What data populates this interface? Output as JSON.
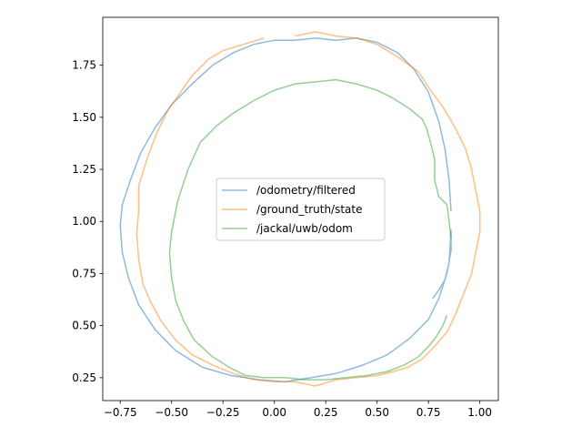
{
  "chart_data": {
    "type": "line",
    "title": "",
    "xlabel": "",
    "ylabel": "",
    "xlim": [
      -0.835,
      1.09
    ],
    "ylim": [
      0.14,
      1.98
    ],
    "xticks": [
      -0.75,
      -0.5,
      -0.25,
      0.0,
      0.25,
      0.5,
      0.75,
      1.0
    ],
    "xtick_labels": [
      "−0.75",
      "−0.50",
      "−0.25",
      "0.00",
      "0.25",
      "0.50",
      "0.75",
      "1.00"
    ],
    "yticks": [
      0.25,
      0.5,
      0.75,
      1.0,
      1.25,
      1.5,
      1.75
    ],
    "ytick_labels": [
      "0.25",
      "0.50",
      "0.75",
      "1.00",
      "1.25",
      "1.50",
      "1.75"
    ],
    "grid": false,
    "legend_position": "center",
    "series": [
      {
        "name": "/odometry/filtered",
        "color": "#1f77b4",
        "x": [
          0.86,
          0.85,
          0.83,
          0.8,
          0.75,
          0.68,
          0.6,
          0.5,
          0.4,
          0.3,
          0.2,
          0.1,
          0.0,
          -0.1,
          -0.2,
          -0.3,
          -0.4,
          -0.5,
          -0.58,
          -0.65,
          -0.7,
          -0.74,
          -0.75,
          -0.74,
          -0.71,
          -0.66,
          -0.58,
          -0.48,
          -0.35,
          -0.21,
          -0.07,
          0.05,
          0.18,
          0.3,
          0.43,
          0.55,
          0.66,
          0.75,
          0.8,
          0.84,
          0.86,
          0.86,
          0.85,
          0.83,
          0.8,
          0.77
        ],
        "y": [
          1.05,
          1.2,
          1.35,
          1.48,
          1.62,
          1.73,
          1.81,
          1.86,
          1.88,
          1.87,
          1.88,
          1.87,
          1.87,
          1.85,
          1.81,
          1.75,
          1.66,
          1.56,
          1.45,
          1.33,
          1.2,
          1.08,
          0.98,
          0.85,
          0.73,
          0.6,
          0.48,
          0.38,
          0.3,
          0.26,
          0.24,
          0.23,
          0.25,
          0.27,
          0.31,
          0.36,
          0.44,
          0.53,
          0.63,
          0.75,
          0.86,
          0.96,
          0.8,
          0.72,
          0.67,
          0.63
        ]
      },
      {
        "name": "/ground_truth/state",
        "color": "#ff7f0e",
        "x": [
          0.1,
          0.2,
          0.3,
          0.4,
          0.5,
          0.6,
          0.7,
          0.76,
          0.82,
          0.88,
          0.93,
          0.96,
          0.98,
          1.0,
          1.0,
          0.98,
          0.96,
          0.92,
          0.88,
          0.84,
          0.78,
          0.72,
          0.65,
          0.58,
          0.5,
          0.4,
          0.3,
          0.2,
          0.1,
          0.0,
          -0.1,
          -0.2,
          -0.3,
          -0.4,
          -0.48,
          -0.55,
          -0.6,
          -0.64,
          -0.66,
          -0.67,
          -0.66,
          -0.66,
          -0.62,
          -0.57,
          -0.52,
          -0.45,
          -0.4,
          -0.32,
          -0.25,
          -0.15,
          -0.05
        ],
        "y": [
          1.89,
          1.91,
          1.89,
          1.88,
          1.85,
          1.79,
          1.72,
          1.63,
          1.55,
          1.45,
          1.35,
          1.25,
          1.15,
          1.05,
          0.95,
          0.85,
          0.75,
          0.65,
          0.55,
          0.47,
          0.4,
          0.34,
          0.3,
          0.28,
          0.26,
          0.25,
          0.24,
          0.21,
          0.23,
          0.23,
          0.24,
          0.27,
          0.31,
          0.36,
          0.43,
          0.52,
          0.61,
          0.7,
          0.82,
          0.94,
          1.05,
          1.17,
          1.3,
          1.43,
          1.53,
          1.63,
          1.7,
          1.78,
          1.82,
          1.85,
          1.88
        ]
      },
      {
        "name": "/jackal/uwb/odom",
        "color": "#2ca02c",
        "x": [
          0.86,
          0.85,
          0.84,
          0.8,
          0.78,
          0.78,
          0.76,
          0.74,
          0.72,
          0.66,
          0.58,
          0.5,
          0.4,
          0.3,
          0.2,
          0.1,
          0.0,
          -0.1,
          -0.2,
          -0.28,
          -0.36,
          -0.42,
          -0.47,
          -0.5,
          -0.51,
          -0.5,
          -0.48,
          -0.44,
          -0.39,
          -0.3,
          -0.22,
          -0.14,
          -0.05,
          0.05,
          0.15,
          0.25,
          0.35,
          0.45,
          0.55,
          0.63,
          0.7,
          0.75,
          0.79,
          0.82,
          0.84
        ],
        "y": [
          0.92,
          1.0,
          1.08,
          1.12,
          1.2,
          1.3,
          1.38,
          1.45,
          1.49,
          1.54,
          1.59,
          1.63,
          1.66,
          1.68,
          1.67,
          1.66,
          1.63,
          1.58,
          1.52,
          1.46,
          1.38,
          1.25,
          1.1,
          0.95,
          0.85,
          0.73,
          0.62,
          0.52,
          0.43,
          0.35,
          0.3,
          0.26,
          0.25,
          0.25,
          0.24,
          0.24,
          0.25,
          0.26,
          0.28,
          0.31,
          0.35,
          0.4,
          0.45,
          0.5,
          0.55
        ]
      }
    ]
  }
}
